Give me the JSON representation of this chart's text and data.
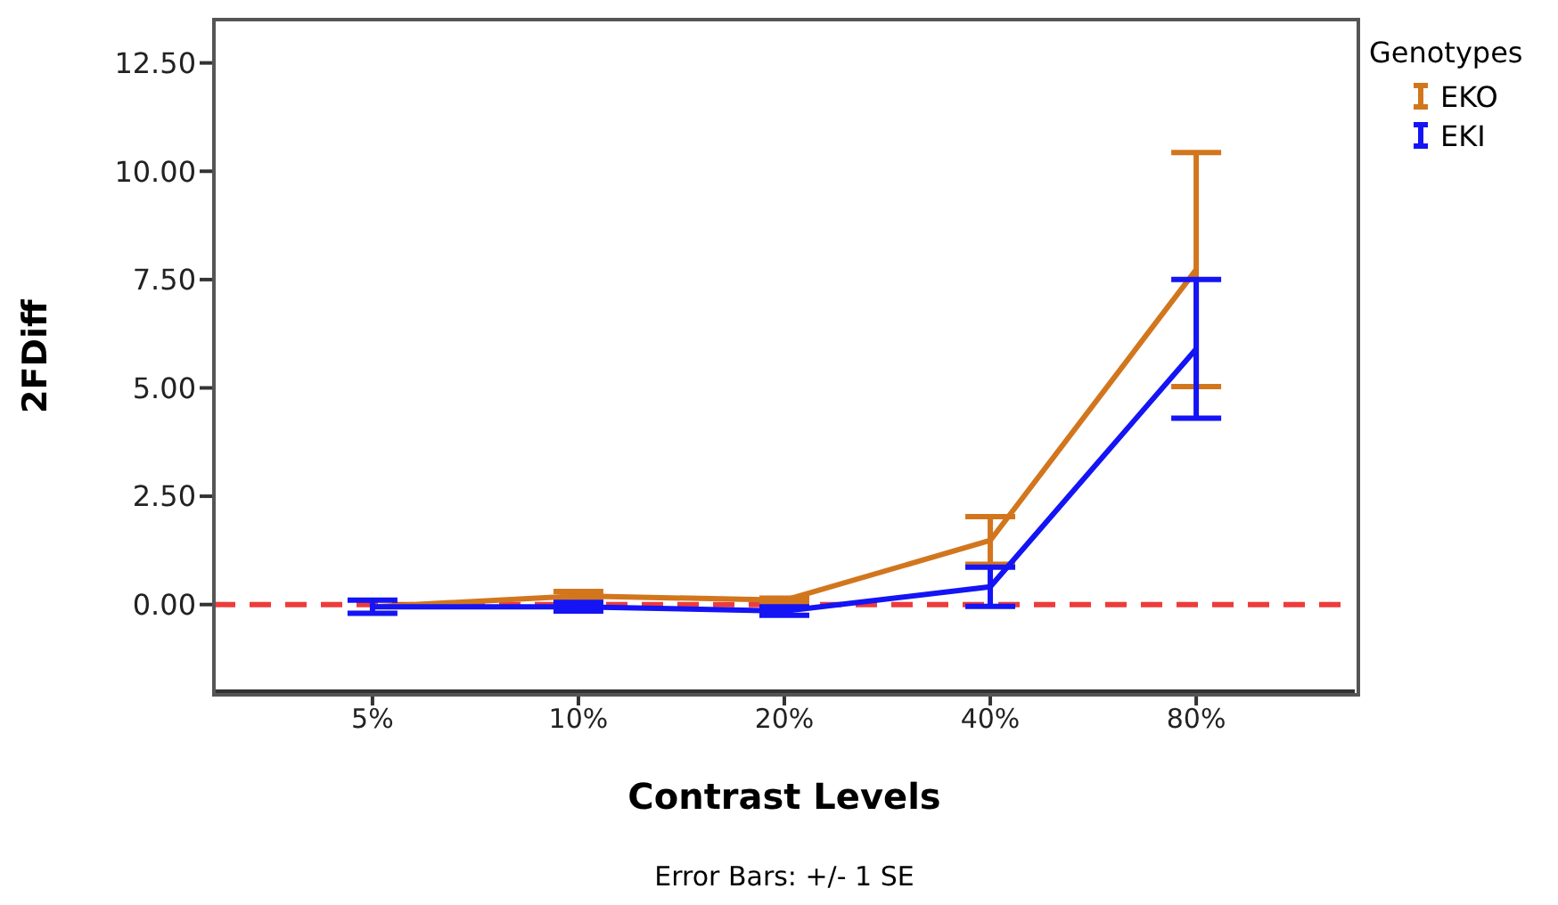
{
  "chart_data": {
    "type": "line",
    "xlabel": "Contrast Levels",
    "ylabel": "2FDiff",
    "legend_title": "Genotypes",
    "annotations": [
      "Error Bars: +/- 1 SE"
    ],
    "categories": [
      "5%",
      "10%",
      "20%",
      "40%",
      "80%"
    ],
    "series": [
      {
        "name": "EKO",
        "color": "#d2761e",
        "values": [
          -0.05,
          0.2,
          0.1,
          1.48,
          7.73
        ],
        "errors": [
          null,
          0.1,
          0.05,
          0.55,
          2.7
        ]
      },
      {
        "name": "EKI",
        "color": "#1414f5",
        "values": [
          -0.05,
          -0.05,
          -0.15,
          0.41,
          5.9
        ],
        "errors": [
          0.15,
          0.1,
          0.1,
          0.45,
          1.6
        ]
      }
    ],
    "ylim": [
      -2,
      13.5
    ],
    "yticks": [
      {
        "value": 0,
        "label": "0.00"
      },
      {
        "value": 2.5,
        "label": "2.50"
      },
      {
        "value": 5,
        "label": "5.00"
      },
      {
        "value": 7.5,
        "label": "7.50"
      },
      {
        "value": 10,
        "label": "10.00"
      },
      {
        "value": 12.5,
        "label": "12.50"
      }
    ],
    "ref_lines": [
      {
        "axis": "y",
        "value": 0,
        "color": "#ee3b3b",
        "line_style": "dashed"
      }
    ],
    "grid": false,
    "legend": "top right",
    "marker": "none",
    "line_style": "solid"
  }
}
